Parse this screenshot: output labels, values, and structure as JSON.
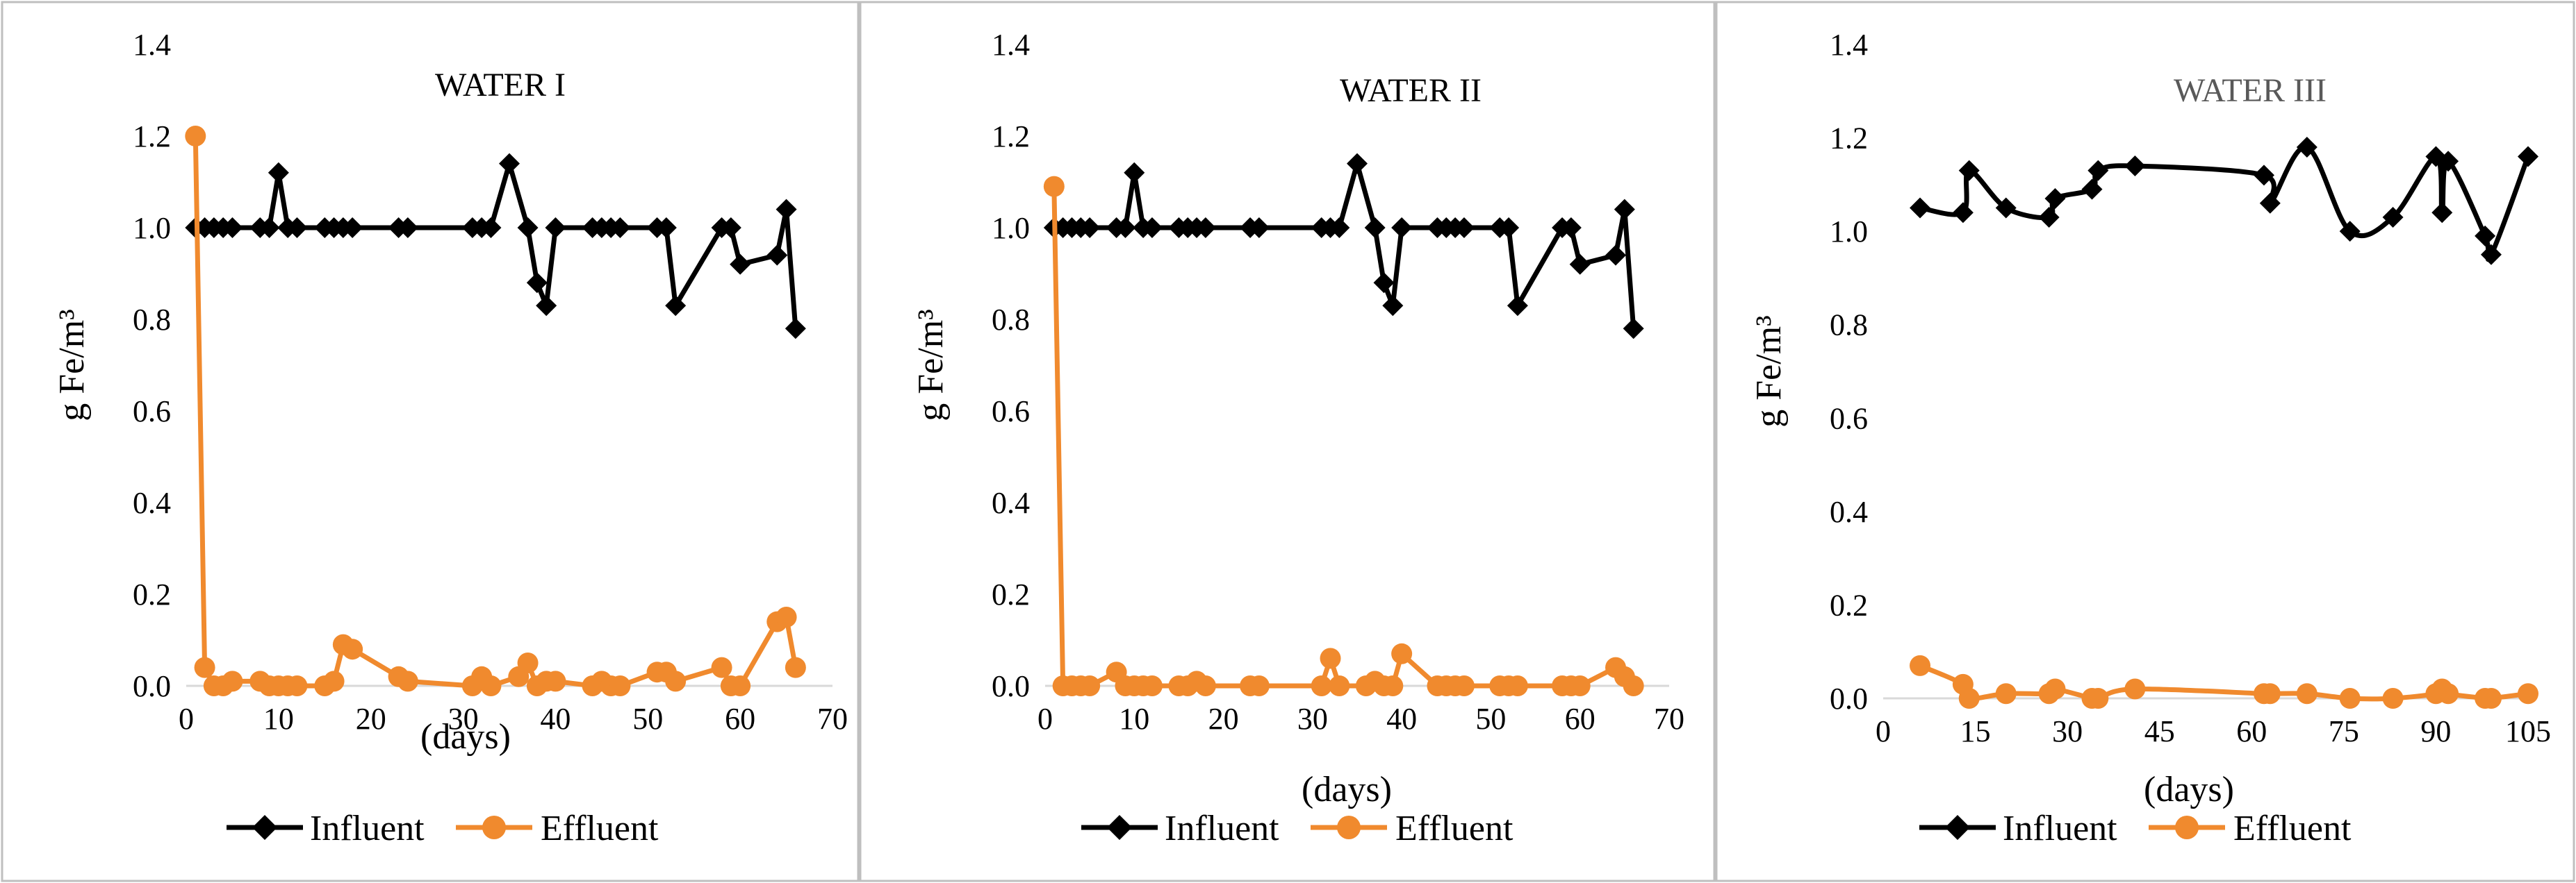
{
  "colors": {
    "influent": "#000000",
    "effluent": "#f08a2e",
    "panel_border": "#bfbfbf"
  },
  "chart_data": [
    {
      "type": "line",
      "title": "WATER I",
      "title_color": "#000000",
      "xlabel": "(days)",
      "ylabel": "g Fe/m³",
      "xlim": [
        0,
        70
      ],
      "ylim": [
        0,
        1.4
      ],
      "xticks": [
        0,
        10,
        20,
        30,
        40,
        50,
        60,
        70
      ],
      "yticks": [
        0,
        0.2,
        0.4,
        0.6,
        0.8,
        1.0,
        1.2,
        1.4
      ],
      "ytick_labels": [
        "0.0",
        "0.2",
        "0.4",
        "0.6",
        "0.8",
        "1.0",
        "1.2",
        "1.4"
      ],
      "legend": [
        "Influent",
        "Effluent"
      ],
      "series": [
        {
          "name": "Influent",
          "marker": "diamond",
          "x": [
            1,
            2,
            3,
            4,
            5,
            8,
            9,
            10,
            11,
            12,
            15,
            16,
            17,
            18,
            23,
            24,
            31,
            32,
            33,
            35,
            37,
            38,
            39,
            40,
            44,
            45,
            46,
            47,
            51,
            52,
            53,
            58,
            59,
            60,
            64,
            65,
            66
          ],
          "y": [
            1.0,
            1.0,
            1.0,
            1.0,
            1.0,
            1.0,
            1.0,
            1.12,
            1.0,
            1.0,
            1.0,
            1.0,
            1.0,
            1.0,
            1.0,
            1.0,
            1.0,
            1.0,
            1.0,
            1.14,
            1.0,
            0.88,
            0.83,
            1.0,
            1.0,
            1.0,
            1.0,
            1.0,
            1.0,
            1.0,
            0.83,
            1.0,
            1.0,
            0.92,
            0.94,
            1.04,
            0.78
          ]
        },
        {
          "name": "Effluent",
          "marker": "circle",
          "x": [
            1,
            2,
            3,
            4,
            5,
            8,
            9,
            10,
            11,
            12,
            15,
            16,
            17,
            18,
            23,
            24,
            31,
            32,
            33,
            36,
            37,
            38,
            39,
            40,
            44,
            45,
            46,
            47,
            51,
            52,
            53,
            58,
            59,
            60,
            64,
            65,
            66
          ],
          "y": [
            1.2,
            0.04,
            0.0,
            0.0,
            0.01,
            0.01,
            0.0,
            0.0,
            0.0,
            0.0,
            0.0,
            0.01,
            0.09,
            0.08,
            0.02,
            0.01,
            0.0,
            0.02,
            0.0,
            0.02,
            0.05,
            0.0,
            0.01,
            0.01,
            0.0,
            0.01,
            0.0,
            0.0,
            0.03,
            0.03,
            0.01,
            0.04,
            0.0,
            0.0,
            0.14,
            0.15,
            0.04
          ]
        }
      ]
    },
    {
      "type": "line",
      "title": "WATER II",
      "title_color": "#000000",
      "xlabel": "(days)",
      "ylabel": "g Fe/m³",
      "xlim": [
        0,
        70
      ],
      "ylim": [
        0,
        1.4
      ],
      "xticks": [
        0,
        10,
        20,
        30,
        40,
        50,
        60,
        70
      ],
      "yticks": [
        0,
        0.2,
        0.4,
        0.6,
        0.8,
        1.0,
        1.2,
        1.4
      ],
      "ytick_labels": [
        "0.0",
        "0.2",
        "0.4",
        "0.6",
        "0.8",
        "1.0",
        "1.2",
        "1.4"
      ],
      "legend": [
        "Influent",
        "Effluent"
      ],
      "series": [
        {
          "name": "Influent",
          "marker": "diamond",
          "x": [
            1,
            2,
            3,
            4,
            5,
            8,
            9,
            10,
            11,
            12,
            15,
            16,
            17,
            18,
            23,
            24,
            31,
            32,
            33,
            35,
            37,
            38,
            39,
            40,
            44,
            45,
            46,
            47,
            51,
            52,
            53,
            58,
            59,
            60,
            64,
            65,
            66
          ],
          "y": [
            1.0,
            1.0,
            1.0,
            1.0,
            1.0,
            1.0,
            1.0,
            1.12,
            1.0,
            1.0,
            1.0,
            1.0,
            1.0,
            1.0,
            1.0,
            1.0,
            1.0,
            1.0,
            1.0,
            1.14,
            1.0,
            0.88,
            0.83,
            1.0,
            1.0,
            1.0,
            1.0,
            1.0,
            1.0,
            1.0,
            0.83,
            1.0,
            1.0,
            0.92,
            0.94,
            1.04,
            0.78
          ]
        },
        {
          "name": "Effluent",
          "marker": "circle",
          "x": [
            1,
            2,
            3,
            4,
            5,
            8,
            9,
            10,
            11,
            12,
            15,
            16,
            17,
            18,
            23,
            24,
            31,
            32,
            33,
            36,
            37,
            38,
            39,
            40,
            44,
            45,
            46,
            47,
            51,
            52,
            53,
            58,
            59,
            60,
            64,
            65,
            66
          ],
          "y": [
            1.09,
            0.0,
            0.0,
            0.0,
            0.0,
            0.03,
            0.0,
            0.0,
            0.0,
            0.0,
            0.0,
            0.0,
            0.01,
            0.0,
            0.0,
            0.0,
            0.0,
            0.06,
            0.0,
            0.0,
            0.01,
            0.0,
            0.0,
            0.07,
            0.0,
            0.0,
            0.0,
            0.0,
            0.0,
            0.0,
            0.0,
            0.0,
            0.0,
            0.0,
            0.04,
            0.02,
            0.0
          ]
        }
      ]
    },
    {
      "type": "line",
      "title": "WATER III",
      "title_color": "#595959",
      "xlabel": "(days)",
      "ylabel": "g Fe/m³",
      "xlim": [
        0,
        105
      ],
      "ylim": [
        0,
        1.4
      ],
      "xticks": [
        0,
        15,
        30,
        45,
        60,
        75,
        90,
        105
      ],
      "yticks": [
        0,
        0.2,
        0.4,
        0.6,
        0.8,
        1.0,
        1.2,
        1.4
      ],
      "ytick_labels": [
        "0.0",
        "0.2",
        "0.4",
        "0.6",
        "0.8",
        "1.0",
        "1.2",
        "1.4"
      ],
      "legend": [
        "Influent",
        "Effluent"
      ],
      "series": [
        {
          "name": "Influent",
          "marker": "diamond",
          "smooth": true,
          "x": [
            6,
            13,
            14,
            20,
            27,
            28,
            34,
            35,
            41,
            62,
            63,
            69,
            76,
            83,
            90,
            91,
            92,
            98,
            99,
            105
          ],
          "y": [
            1.05,
            1.04,
            1.13,
            1.05,
            1.03,
            1.07,
            1.09,
            1.13,
            1.14,
            1.12,
            1.06,
            1.18,
            1.0,
            1.03,
            1.16,
            1.04,
            1.15,
            0.99,
            0.95,
            1.16
          ]
        },
        {
          "name": "Effluent",
          "marker": "circle",
          "smooth": true,
          "x": [
            6,
            13,
            14,
            20,
            27,
            28,
            34,
            35,
            41,
            62,
            63,
            69,
            76,
            83,
            90,
            91,
            92,
            98,
            99,
            105
          ],
          "y": [
            0.07,
            0.03,
            0.0,
            0.01,
            0.01,
            0.02,
            0.0,
            0.0,
            0.02,
            0.01,
            0.01,
            0.01,
            0.0,
            0.0,
            0.01,
            0.02,
            0.01,
            0.0,
            0.0,
            0.01
          ]
        }
      ]
    }
  ]
}
